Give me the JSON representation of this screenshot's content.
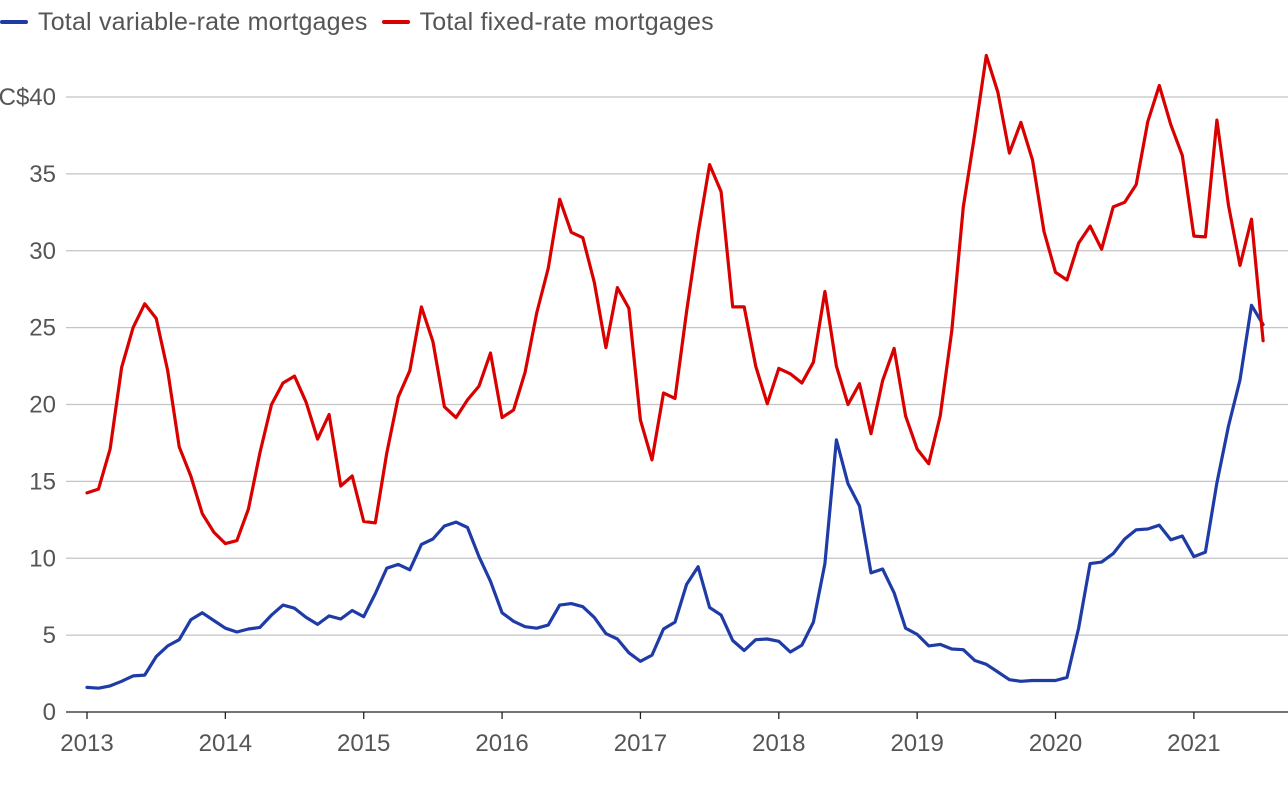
{
  "chart_data": {
    "type": "line",
    "title": "",
    "xlabel": "",
    "ylabel": "",
    "ylim": [
      0,
      40
    ],
    "xlim": [
      "2013-01",
      "2021-07"
    ],
    "grid": "horizontal",
    "legend_position": "top-left",
    "y_ticks": [
      0,
      5,
      10,
      15,
      20,
      25,
      30,
      35,
      40
    ],
    "y_tick_labels": [
      "0",
      "5",
      "10",
      "15",
      "20",
      "25",
      "30",
      "35",
      "C$40"
    ],
    "x_ticks": [
      "2013-01",
      "2014-01",
      "2015-01",
      "2016-01",
      "2017-01",
      "2018-01",
      "2019-01",
      "2020-01",
      "2021-01"
    ],
    "x_tick_labels": [
      "2013",
      "2014",
      "2015",
      "2016",
      "2017",
      "2018",
      "2019",
      "2020",
      "2021"
    ],
    "series": [
      {
        "name": "Total variable-rate mortgages",
        "color": "#1f3ca6",
        "points": [
          [
            "2013-01",
            1.6
          ],
          [
            "2013-02",
            1.55
          ],
          [
            "2013-03",
            1.7
          ],
          [
            "2013-04",
            2.0
          ],
          [
            "2013-05",
            2.35
          ],
          [
            "2013-06",
            2.4
          ],
          [
            "2013-07",
            3.6
          ],
          [
            "2013-08",
            4.3
          ],
          [
            "2013-09",
            4.7
          ],
          [
            "2013-10",
            6.0
          ],
          [
            "2013-11",
            6.45
          ],
          [
            "2013-12",
            5.95
          ],
          [
            "2014-01",
            5.45
          ],
          [
            "2014-02",
            5.2
          ],
          [
            "2014-03",
            5.4
          ],
          [
            "2014-04",
            5.5
          ],
          [
            "2014-05",
            6.3
          ],
          [
            "2014-06",
            6.95
          ],
          [
            "2014-07",
            6.75
          ],
          [
            "2014-08",
            6.15
          ],
          [
            "2014-09",
            5.7
          ],
          [
            "2014-10",
            6.25
          ],
          [
            "2014-11",
            6.05
          ],
          [
            "2014-12",
            6.6
          ],
          [
            "2015-01",
            6.2
          ],
          [
            "2015-02",
            7.7
          ],
          [
            "2015-03",
            9.35
          ],
          [
            "2015-04",
            9.6
          ],
          [
            "2015-05",
            9.25
          ],
          [
            "2015-06",
            10.9
          ],
          [
            "2015-07",
            11.25
          ],
          [
            "2015-08",
            12.1
          ],
          [
            "2015-09",
            12.35
          ],
          [
            "2015-10",
            12.0
          ],
          [
            "2015-11",
            10.1
          ],
          [
            "2015-12",
            8.5
          ],
          [
            "2016-01",
            6.45
          ],
          [
            "2016-02",
            5.9
          ],
          [
            "2016-03",
            5.55
          ],
          [
            "2016-04",
            5.45
          ],
          [
            "2016-05",
            5.65
          ],
          [
            "2016-06",
            6.95
          ],
          [
            "2016-07",
            7.05
          ],
          [
            "2016-08",
            6.85
          ],
          [
            "2016-09",
            6.15
          ],
          [
            "2016-10",
            5.1
          ],
          [
            "2016-11",
            4.75
          ],
          [
            "2016-12",
            3.85
          ],
          [
            "2017-01",
            3.3
          ],
          [
            "2017-02",
            3.7
          ],
          [
            "2017-03",
            5.4
          ],
          [
            "2017-04",
            5.85
          ],
          [
            "2017-05",
            8.3
          ],
          [
            "2017-06",
            9.45
          ],
          [
            "2017-07",
            6.8
          ],
          [
            "2017-08",
            6.3
          ],
          [
            "2017-09",
            4.65
          ],
          [
            "2017-10",
            4.0
          ],
          [
            "2017-11",
            4.7
          ],
          [
            "2017-12",
            4.75
          ],
          [
            "2018-01",
            4.6
          ],
          [
            "2018-02",
            3.9
          ],
          [
            "2018-03",
            4.35
          ],
          [
            "2018-04",
            5.85
          ],
          [
            "2018-05",
            9.65
          ],
          [
            "2018-06",
            17.7
          ],
          [
            "2018-07",
            14.85
          ],
          [
            "2018-08",
            13.4
          ],
          [
            "2018-09",
            9.05
          ],
          [
            "2018-10",
            9.3
          ],
          [
            "2018-11",
            7.75
          ],
          [
            "2018-12",
            5.45
          ],
          [
            "2019-01",
            5.05
          ],
          [
            "2019-02",
            4.3
          ],
          [
            "2019-03",
            4.4
          ],
          [
            "2019-04",
            4.1
          ],
          [
            "2019-05",
            4.05
          ],
          [
            "2019-06",
            3.35
          ],
          [
            "2019-07",
            3.1
          ],
          [
            "2019-08",
            2.6
          ],
          [
            "2019-09",
            2.1
          ],
          [
            "2019-10",
            2.0
          ],
          [
            "2019-11",
            2.05
          ],
          [
            "2019-12",
            2.05
          ],
          [
            "2020-01",
            2.05
          ],
          [
            "2020-02",
            2.25
          ],
          [
            "2020-03",
            5.45
          ],
          [
            "2020-04",
            9.65
          ],
          [
            "2020-05",
            9.75
          ],
          [
            "2020-06",
            10.3
          ],
          [
            "2020-07",
            11.25
          ],
          [
            "2020-08",
            11.85
          ],
          [
            "2020-09",
            11.9
          ],
          [
            "2020-10",
            12.15
          ],
          [
            "2020-11",
            11.2
          ],
          [
            "2020-12",
            11.45
          ],
          [
            "2021-01",
            10.1
          ],
          [
            "2021-02",
            10.4
          ],
          [
            "2021-03",
            14.9
          ],
          [
            "2021-04",
            18.6
          ],
          [
            "2021-05",
            21.6
          ],
          [
            "2021-06",
            26.45
          ],
          [
            "2021-07",
            25.2
          ]
        ]
      },
      {
        "name": "Total fixed-rate mortgages",
        "color": "#d90000",
        "points": [
          [
            "2013-01",
            14.25
          ],
          [
            "2013-02",
            14.5
          ],
          [
            "2013-03",
            17.1
          ],
          [
            "2013-04",
            22.4
          ],
          [
            "2013-05",
            25.0
          ],
          [
            "2013-06",
            26.55
          ],
          [
            "2013-07",
            25.6
          ],
          [
            "2013-08",
            22.2
          ],
          [
            "2013-09",
            17.25
          ],
          [
            "2013-10",
            15.35
          ],
          [
            "2013-11",
            12.9
          ],
          [
            "2013-12",
            11.7
          ],
          [
            "2014-01",
            10.95
          ],
          [
            "2014-02",
            11.15
          ],
          [
            "2014-03",
            13.2
          ],
          [
            "2014-04",
            16.85
          ],
          [
            "2014-05",
            20.0
          ],
          [
            "2014-06",
            21.4
          ],
          [
            "2014-07",
            21.85
          ],
          [
            "2014-08",
            20.15
          ],
          [
            "2014-09",
            17.75
          ],
          [
            "2014-10",
            19.35
          ],
          [
            "2014-11",
            14.7
          ],
          [
            "2014-12",
            15.35
          ],
          [
            "2015-01",
            12.4
          ],
          [
            "2015-02",
            12.3
          ],
          [
            "2015-03",
            16.85
          ],
          [
            "2015-04",
            20.5
          ],
          [
            "2015-05",
            22.2
          ],
          [
            "2015-06",
            26.35
          ],
          [
            "2015-07",
            24.1
          ],
          [
            "2015-08",
            19.85
          ],
          [
            "2015-09",
            19.15
          ],
          [
            "2015-10",
            20.3
          ],
          [
            "2015-11",
            21.2
          ],
          [
            "2015-12",
            23.35
          ],
          [
            "2016-01",
            19.15
          ],
          [
            "2016-02",
            19.65
          ],
          [
            "2016-03",
            22.1
          ],
          [
            "2016-04",
            25.95
          ],
          [
            "2016-05",
            28.85
          ],
          [
            "2016-06",
            33.35
          ],
          [
            "2016-07",
            31.2
          ],
          [
            "2016-08",
            30.85
          ],
          [
            "2016-09",
            27.95
          ],
          [
            "2016-10",
            23.7
          ],
          [
            "2016-11",
            27.6
          ],
          [
            "2016-12",
            26.25
          ],
          [
            "2017-01",
            19.0
          ],
          [
            "2017-02",
            16.4
          ],
          [
            "2017-03",
            20.75
          ],
          [
            "2017-04",
            20.4
          ],
          [
            "2017-05",
            26.05
          ],
          [
            "2017-06",
            31.15
          ],
          [
            "2017-07",
            35.6
          ],
          [
            "2017-08",
            33.85
          ],
          [
            "2017-09",
            26.35
          ],
          [
            "2017-10",
            26.35
          ],
          [
            "2017-11",
            22.5
          ],
          [
            "2017-12",
            20.05
          ],
          [
            "2018-01",
            22.35
          ],
          [
            "2018-02",
            22.0
          ],
          [
            "2018-03",
            21.4
          ],
          [
            "2018-04",
            22.75
          ],
          [
            "2018-05",
            27.35
          ],
          [
            "2018-06",
            22.5
          ],
          [
            "2018-07",
            20.0
          ],
          [
            "2018-08",
            21.35
          ],
          [
            "2018-09",
            18.1
          ],
          [
            "2018-10",
            21.55
          ],
          [
            "2018-11",
            23.65
          ],
          [
            "2018-12",
            19.25
          ],
          [
            "2019-01",
            17.1
          ],
          [
            "2019-02",
            16.15
          ],
          [
            "2019-03",
            19.25
          ],
          [
            "2019-04",
            24.8
          ],
          [
            "2019-05",
            32.85
          ],
          [
            "2019-06",
            37.6
          ],
          [
            "2019-07",
            42.7
          ],
          [
            "2019-08",
            40.3
          ],
          [
            "2019-09",
            36.35
          ],
          [
            "2019-10",
            38.35
          ],
          [
            "2019-11",
            35.9
          ],
          [
            "2019-12",
            31.25
          ],
          [
            "2020-01",
            28.6
          ],
          [
            "2020-02",
            28.1
          ],
          [
            "2020-03",
            30.5
          ],
          [
            "2020-04",
            31.6
          ],
          [
            "2020-05",
            30.1
          ],
          [
            "2020-06",
            32.85
          ],
          [
            "2020-07",
            33.15
          ],
          [
            "2020-08",
            34.3
          ],
          [
            "2020-09",
            38.4
          ],
          [
            "2020-10",
            40.75
          ],
          [
            "2020-11",
            38.2
          ],
          [
            "2020-12",
            36.2
          ],
          [
            "2021-01",
            30.95
          ],
          [
            "2021-02",
            30.9
          ],
          [
            "2021-03",
            38.5
          ],
          [
            "2021-04",
            32.95
          ],
          [
            "2021-05",
            29.05
          ],
          [
            "2021-06",
            32.05
          ],
          [
            "2021-07",
            24.15
          ]
        ]
      }
    ]
  }
}
